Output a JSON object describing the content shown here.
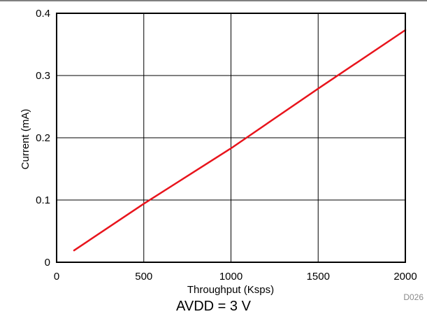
{
  "chart_data": {
    "type": "line",
    "title": "",
    "xlabel": "Throughput (Ksps)",
    "ylabel": "Current (mA)",
    "xlim": [
      0,
      2000
    ],
    "ylim": [
      0,
      0.4
    ],
    "x_ticks": [
      "0",
      "500",
      "1000",
      "1500",
      "2000"
    ],
    "y_ticks": [
      "0",
      "0.1",
      "0.2",
      "0.3",
      "0.4"
    ],
    "grid": true,
    "series": [
      {
        "color": "#e8141c",
        "x": [
          100,
          500,
          1000,
          1500,
          2000
        ],
        "y": [
          0.019,
          0.094,
          0.183,
          0.279,
          0.373
        ]
      }
    ],
    "figure_id": "D026"
  },
  "caption": "AVDD = 3 V"
}
